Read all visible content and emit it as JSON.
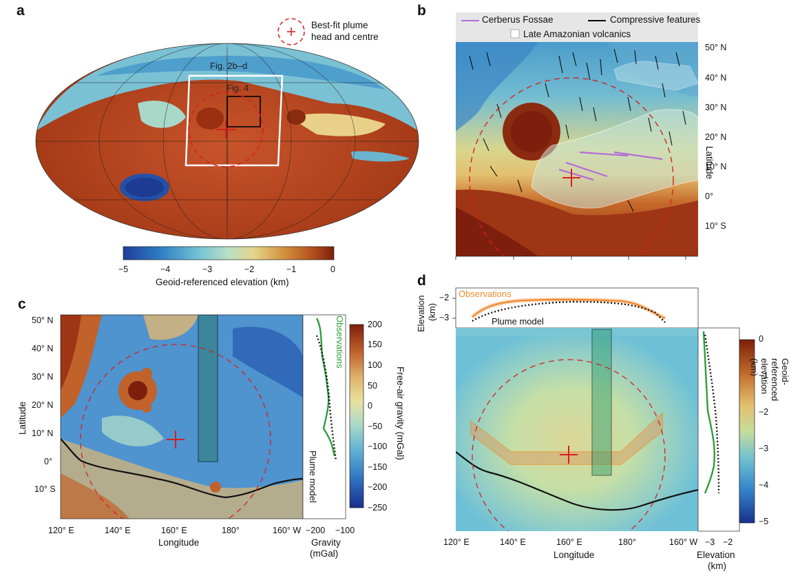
{
  "panels": {
    "a": {
      "label": "a",
      "legend": {
        "line1": "Best-fit plume",
        "line2": "head and centre"
      },
      "box_labels": {
        "fig2": "Fig. 2b–d",
        "fig4": "Fig. 4"
      },
      "colorbar": {
        "ticks": [
          "−5",
          "−4",
          "−3",
          "−2",
          "−1",
          "0"
        ],
        "title": "Geoid-referenced elevation (km)"
      }
    },
    "b": {
      "label": "b",
      "legend": {
        "cerberus": "Cerberus Fossae",
        "compressive": "Compressive features",
        "volcanics": "Late Amazonian volcanics"
      },
      "lat_ticks": [
        "50° N",
        "40° N",
        "30° N",
        "20° N",
        "10° N",
        "0°",
        "10° S"
      ],
      "axis_title": "Latitude"
    },
    "c": {
      "label": "c",
      "lat_ticks": [
        "50° N",
        "40° N",
        "30° N",
        "20° N",
        "10° N",
        "0°",
        "10° S"
      ],
      "lon_ticks": [
        "120° E",
        "140° E",
        "160° E",
        "180°",
        "160° W"
      ],
      "xlabel": "Longitude",
      "ylabel": "Latitude",
      "side_ticks": [
        "−200",
        "−100"
      ],
      "side_xlabel1": "Gravity",
      "side_xlabel2": "(mGal)",
      "observations": "Observations",
      "plume_model": "Plume model",
      "colorbar": {
        "ticks": [
          "200",
          "150",
          "100",
          "50",
          "0",
          "−50",
          "−100",
          "−150",
          "−200",
          "−250"
        ],
        "title": "Free-air gravity (mGal)"
      }
    },
    "d": {
      "label": "d",
      "top_ylabel1": "Elevation",
      "top_ylabel2": "(km)",
      "top_ticks": [
        "−2",
        "−3"
      ],
      "observations": "Observations",
      "plume_model": "Plume model",
      "lon_ticks": [
        "120° E",
        "140° E",
        "160° E",
        "180°",
        "160° W"
      ],
      "xlabel": "Longitude",
      "side_ticks": [
        "−3",
        "−2"
      ],
      "side_xlabel1": "Elevation",
      "side_xlabel2": "(km)",
      "colorbar": {
        "ticks": [
          "0",
          "−1",
          "−2",
          "−3",
          "−4",
          "−5"
        ],
        "title": "Geoid-referenced elevation (km)"
      }
    }
  },
  "colors": {
    "plume_circle": "#d42020",
    "cerberus": "#b26bd6",
    "observations": "#2e9e3a",
    "observations_d": "#f08a2e",
    "box_white": "#ffffff",
    "compressive": "#000000"
  }
}
